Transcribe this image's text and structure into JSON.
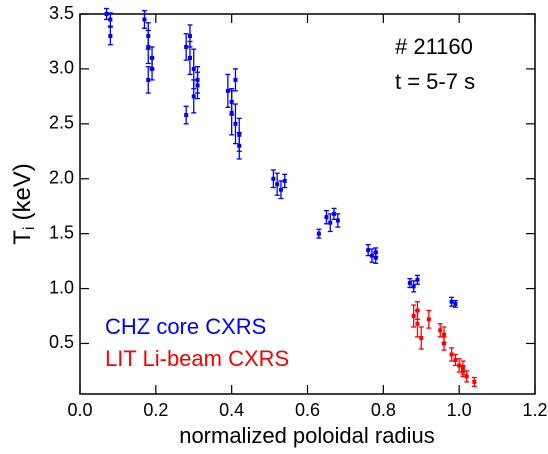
{
  "chart_data": {
    "type": "scatter",
    "y_label": {
      "main": "T",
      "sub": "i",
      "unit": "(keV)"
    },
    "x_label": "normalized poloidal radius",
    "annotations": [
      "# 21160",
      "t = 5-7 s"
    ],
    "xlim": [
      0,
      1.2
    ],
    "ylim": [
      0.04,
      3.5
    ],
    "xticks": [
      {
        "value": 0,
        "label": "0.0"
      },
      0.2,
      0.4,
      0.6,
      0.8,
      {
        "value": 1,
        "label": "1.0"
      },
      1.2
    ],
    "yticks": [
      0.5,
      {
        "value": 1,
        "label": "1.0"
      },
      1.5,
      {
        "value": 2,
        "label": "2.0"
      },
      2.5,
      {
        "value": 3,
        "label": "3.0"
      },
      3.5
    ],
    "series": [
      {
        "name": "CHZ core CXRS",
        "color": "#0000ff",
        "x": [
          0.07,
          0.08,
          0.08,
          0.17,
          0.18,
          0.18,
          0.19,
          0.18,
          0.19,
          0.28,
          0.29,
          0.3,
          0.31,
          0.29,
          0.3,
          0.31,
          0.28,
          0.39,
          0.4,
          0.41,
          0.42,
          0.4,
          0.41,
          0.42,
          0.51,
          0.52,
          0.53,
          0.54,
          0.65,
          0.66,
          0.67,
          0.68,
          0.63,
          0.76,
          0.77,
          0.78,
          0.78,
          0.87,
          0.88,
          0.89,
          0.98,
          0.99
        ],
        "values": [
          3.5,
          3.45,
          3.3,
          3.45,
          3.3,
          3.2,
          3.0,
          2.9,
          3.1,
          3.2,
          3.1,
          3.0,
          2.9,
          3.3,
          2.75,
          2.85,
          2.58,
          2.8,
          2.6,
          2.5,
          2.4,
          2.7,
          2.9,
          2.3,
          2.0,
          1.95,
          1.9,
          1.98,
          1.65,
          1.6,
          1.68,
          1.62,
          1.5,
          1.35,
          1.3,
          1.28,
          1.33,
          1.05,
          1.02,
          1.08,
          0.88,
          0.86
        ],
        "errors": [
          0.05,
          0.06,
          0.08,
          0.08,
          0.12,
          0.15,
          0.1,
          0.12,
          0.1,
          0.12,
          0.15,
          0.18,
          0.12,
          0.1,
          0.15,
          0.12,
          0.08,
          0.15,
          0.2,
          0.18,
          0.15,
          0.12,
          0.1,
          0.12,
          0.08,
          0.1,
          0.08,
          0.06,
          0.06,
          0.08,
          0.05,
          0.06,
          0.04,
          0.05,
          0.06,
          0.05,
          0.04,
          0.04,
          0.05,
          0.04,
          0.04,
          0.03
        ]
      },
      {
        "name": "LIT Li-beam CXRS",
        "color": "#ff0000",
        "x": [
          0.88,
          0.89,
          0.9,
          0.89,
          0.92,
          0.95,
          0.96,
          0.96,
          0.98,
          0.99,
          1.0,
          1.01,
          1.02,
          1.01,
          1.04
        ],
        "values": [
          0.75,
          0.68,
          0.55,
          0.8,
          0.72,
          0.62,
          0.58,
          0.5,
          0.4,
          0.35,
          0.3,
          0.25,
          0.2,
          0.28,
          0.15
        ],
        "errors": [
          0.1,
          0.12,
          0.1,
          0.08,
          0.08,
          0.06,
          0.07,
          0.06,
          0.06,
          0.05,
          0.06,
          0.05,
          0.05,
          0.06,
          0.04
        ]
      }
    ],
    "legend": "lower left"
  }
}
